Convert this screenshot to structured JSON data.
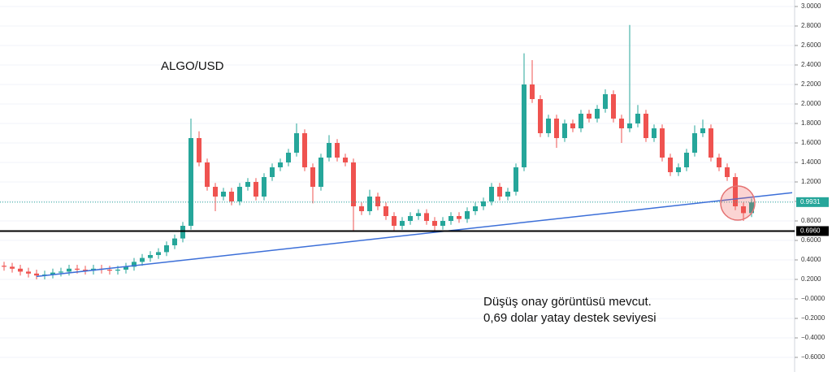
{
  "chart_data": {
    "type": "candlestick",
    "title": "ALGO/USD",
    "annotations": [
      "Düşüş onay görüntüsü mevcut.",
      "0,69 dolar yatay destek seviyesi"
    ],
    "up_color": "#26a69a",
    "down_color": "#ef5350",
    "grid": true,
    "ylim": [
      -0.75,
      3.0667
    ],
    "yticks": [
      {
        "value": 3,
        "label": "3.0000"
      },
      {
        "value": 2.8,
        "label": "2.8000"
      },
      {
        "value": 2.6,
        "label": "2.6000"
      },
      {
        "value": 2.4,
        "label": "2.4000"
      },
      {
        "value": 2.2,
        "label": "2.2000"
      },
      {
        "value": 2,
        "label": "2.0000"
      },
      {
        "value": 1.8,
        "label": "1.8000"
      },
      {
        "value": 1.6,
        "label": "1.6000"
      },
      {
        "value": 1.4,
        "label": "1.4000"
      },
      {
        "value": 1.2,
        "label": "1.2000"
      },
      {
        "value": 1,
        "label": "1.0000"
      },
      {
        "value": 0.8,
        "label": "0.8000"
      },
      {
        "value": 0.6,
        "label": "0.6000"
      },
      {
        "value": 0.4,
        "label": "0.4000"
      },
      {
        "value": 0.2,
        "label": "0.2000"
      },
      {
        "value": 0,
        "label": "−0.0000"
      },
      {
        "value": -0.2,
        "label": "−0.2000"
      },
      {
        "value": -0.4,
        "label": "−0.4000"
      },
      {
        "value": -0.6,
        "label": "−0.6000"
      }
    ],
    "open": [
      0.34,
      0.33,
      0.31,
      0.28,
      0.26,
      0.24,
      0.25,
      0.27,
      0.28,
      0.31,
      0.3,
      0.29,
      0.31,
      0.3,
      0.29,
      0.3,
      0.33,
      0.38,
      0.42,
      0.45,
      0.48,
      0.55,
      0.62,
      0.75,
      1.65,
      1.4,
      1.15,
      1.05,
      1.1,
      1.0,
      1.15,
      1.2,
      1.05,
      1.25,
      1.35,
      1.4,
      1.5,
      1.7,
      1.35,
      1.15,
      1.45,
      1.6,
      1.45,
      1.4,
      0.95,
      0.9,
      1.05,
      0.95,
      0.85,
      0.75,
      0.8,
      0.85,
      0.88,
      0.8,
      0.75,
      0.8,
      0.85,
      0.82,
      0.9,
      0.95,
      1.0,
      1.15,
      1.05,
      1.1,
      1.35,
      2.2,
      2.05,
      1.7,
      1.85,
      1.65,
      1.8,
      1.75,
      1.9,
      1.85,
      1.95,
      2.1,
      1.85,
      1.75,
      1.8,
      1.9,
      1.65,
      1.75,
      1.45,
      1.3,
      1.35,
      1.5,
      1.7,
      1.75,
      1.45,
      1.35,
      1.25,
      0.95,
      0.88
    ],
    "high": [
      0.38,
      0.37,
      0.35,
      0.32,
      0.3,
      0.29,
      0.31,
      0.32,
      0.35,
      0.35,
      0.34,
      0.35,
      0.35,
      0.34,
      0.34,
      0.37,
      0.42,
      0.46,
      0.49,
      0.52,
      0.59,
      0.66,
      0.79,
      1.85,
      1.72,
      1.44,
      1.19,
      1.14,
      1.14,
      1.19,
      1.24,
      1.24,
      1.29,
      1.39,
      1.44,
      1.54,
      1.8,
      1.74,
      1.39,
      1.49,
      1.68,
      1.64,
      1.49,
      1.44,
      0.99,
      1.12,
      1.09,
      0.99,
      0.89,
      0.84,
      0.89,
      0.92,
      0.92,
      0.84,
      0.84,
      0.89,
      0.89,
      0.94,
      0.99,
      1.04,
      1.19,
      1.19,
      1.14,
      1.39,
      2.52,
      2.45,
      2.09,
      1.89,
      1.89,
      1.84,
      1.84,
      1.94,
      1.94,
      1.99,
      2.15,
      2.14,
      1.89,
      2.81,
      1.99,
      1.94,
      1.79,
      1.79,
      1.49,
      1.39,
      1.54,
      1.78,
      1.84,
      1.79,
      1.49,
      1.39,
      1.29,
      0.99,
      1.03
    ],
    "low": [
      0.29,
      0.27,
      0.24,
      0.22,
      0.2,
      0.2,
      0.21,
      0.23,
      0.24,
      0.26,
      0.25,
      0.25,
      0.26,
      0.25,
      0.25,
      0.26,
      0.29,
      0.34,
      0.38,
      0.41,
      0.44,
      0.51,
      0.58,
      0.71,
      1.36,
      1.11,
      0.9,
      1.01,
      0.96,
      0.96,
      1.11,
      1.01,
      1.01,
      1.21,
      1.31,
      1.36,
      1.46,
      1.31,
      0.98,
      1.11,
      1.41,
      1.41,
      1.36,
      0.7,
      0.86,
      0.86,
      0.91,
      0.81,
      0.69,
      0.71,
      0.76,
      0.81,
      0.76,
      0.7,
      0.71,
      0.76,
      0.78,
      0.78,
      0.86,
      0.91,
      0.96,
      1.01,
      1.01,
      1.06,
      1.31,
      2.01,
      1.66,
      1.66,
      1.55,
      1.61,
      1.71,
      1.71,
      1.81,
      1.81,
      1.91,
      1.81,
      1.6,
      1.71,
      1.76,
      1.61,
      1.61,
      1.41,
      1.26,
      1.26,
      1.31,
      1.46,
      1.66,
      1.41,
      1.31,
      1.21,
      0.91,
      0.8,
      0.84
    ],
    "close": [
      0.33,
      0.31,
      0.28,
      0.26,
      0.24,
      0.25,
      0.27,
      0.28,
      0.31,
      0.3,
      0.29,
      0.31,
      0.3,
      0.29,
      0.3,
      0.33,
      0.38,
      0.42,
      0.45,
      0.48,
      0.55,
      0.62,
      0.75,
      1.65,
      1.4,
      1.15,
      1.05,
      1.1,
      1.0,
      1.15,
      1.2,
      1.05,
      1.25,
      1.35,
      1.4,
      1.5,
      1.7,
      1.35,
      1.15,
      1.45,
      1.6,
      1.45,
      1.4,
      0.95,
      0.9,
      1.05,
      0.95,
      0.85,
      0.75,
      0.8,
      0.85,
      0.88,
      0.8,
      0.75,
      0.8,
      0.85,
      0.82,
      0.9,
      0.95,
      1.0,
      1.15,
      1.05,
      1.1,
      1.35,
      2.2,
      2.05,
      1.7,
      1.85,
      1.65,
      1.8,
      1.75,
      1.9,
      1.85,
      1.95,
      2.1,
      1.85,
      1.75,
      1.8,
      1.9,
      1.65,
      1.75,
      1.45,
      1.3,
      1.35,
      1.5,
      1.7,
      1.75,
      1.45,
      1.35,
      1.25,
      0.95,
      0.88,
      0.99
    ],
    "trendline": {
      "x": [
        4,
        97
      ],
      "y": [
        0.23,
        1.09
      ],
      "color": "#3c6fd8"
    },
    "support": {
      "value": 0.696,
      "label": "0.6960",
      "color": "#000000"
    },
    "last_price": {
      "value": 0.9931,
      "label": "0.9931",
      "color": "#26a69a"
    }
  }
}
